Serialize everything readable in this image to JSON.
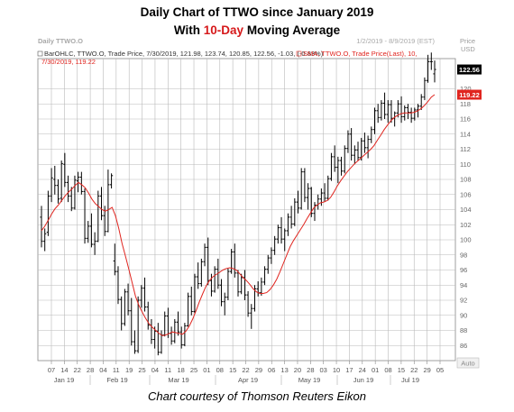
{
  "title": {
    "before": "Daily Chart of TTWO since January 2019",
    "line2_prefix": "With ",
    "line2_highlight": "10-Day",
    "line2_suffix": " Moving Average"
  },
  "caption": "Chart courtesy of Thomson Reuters Eikon",
  "header": {
    "symbol_label": "Daily TTWO.O",
    "date_range": "1/2/2019 - 8/9/2019 (EST)",
    "price_label": "Price",
    "currency_label": "USD",
    "auto_label": "Auto"
  },
  "legend": {
    "bar_info": "BarOHLC, TTWO.O, Trade Price, 7/30/2019, 121.98, 123.74, 120.85, 122.56, -1.03, (-0.83%)",
    "sma_info_line1": "SMA, TTWO.O, Trade Price(Last), 10,",
    "sma_info_line2": "7/30/2019, 119.22",
    "bar_color": "#000000",
    "sma_color": "#e0251f"
  },
  "chart_data": {
    "type": "line",
    "price_axis": {
      "min": 84,
      "max": 124,
      "ticks": [
        86,
        88,
        90,
        92,
        94,
        96,
        98,
        100,
        102,
        104,
        106,
        108,
        110,
        112,
        114,
        116,
        118,
        120
      ],
      "tick_labels": [
        "86",
        "88",
        "90",
        "92",
        "94",
        "96",
        "98",
        "100",
        "102",
        "104",
        "106",
        "108",
        "110",
        "112",
        "114",
        "116",
        "118",
        "120"
      ]
    },
    "last_price_marker": {
      "value": 122.56,
      "label": "122.56",
      "color": "#000000"
    },
    "sma_marker": {
      "value": 119.22,
      "label": "119.22",
      "color": "#e0251f"
    },
    "x_tick_labels": [
      "07",
      "14",
      "22",
      "28",
      "04",
      "11",
      "19",
      "25",
      "04",
      "11",
      "18",
      "25",
      "01",
      "08",
      "15",
      "22",
      "29",
      "06",
      "13",
      "20",
      "28",
      "03",
      "10",
      "17",
      "24",
      "01",
      "08",
      "15",
      "22",
      "29",
      "05"
    ],
    "month_labels": [
      "Jan 19",
      "Feb 19",
      "Mar 19",
      "Apr 19",
      "May 19",
      "Jun 19",
      "Jul 19"
    ],
    "ohlc_series": {
      "name": "BarOHLC",
      "color": "#000000",
      "values": [
        [
          103,
          104.5,
          99,
          99.8
        ],
        [
          99.8,
          101.5,
          98.5,
          100.8
        ],
        [
          101,
          106.5,
          100.5,
          105.8
        ],
        [
          105.8,
          109.5,
          105,
          108.2
        ],
        [
          108,
          109.8,
          106,
          107.2
        ],
        [
          107.2,
          108,
          104.8,
          105.4
        ],
        [
          105.5,
          110.5,
          105,
          110.1
        ],
        [
          110,
          111.5,
          107,
          107.6
        ],
        [
          107.6,
          108.5,
          105,
          105.8
        ],
        [
          105.8,
          107,
          103.8,
          104.2
        ],
        [
          104.2,
          108.5,
          104,
          107.9
        ],
        [
          107.8,
          109,
          106.3,
          108.3
        ],
        [
          108.3,
          109,
          106,
          106.4
        ],
        [
          106.4,
          106.8,
          99.5,
          100.2
        ],
        [
          100.2,
          102.5,
          99.6,
          101.8
        ],
        [
          101.8,
          103.5,
          99,
          99.4
        ],
        [
          99.4,
          101,
          98,
          99.8
        ],
        [
          99.8,
          106.5,
          99.7,
          105.8
        ],
        [
          105.8,
          107,
          102.6,
          103.2
        ],
        [
          103.2,
          104.5,
          100.5,
          101.1
        ],
        [
          101.1,
          109.3,
          101,
          107.3
        ],
        [
          107.3,
          108.8,
          106.8,
          108.5
        ],
        [
          97.2,
          99.5,
          95.3,
          95.8
        ],
        [
          95.8,
          96.5,
          91.5,
          92.1
        ],
        [
          92.1,
          92.5,
          88,
          88.9
        ],
        [
          88.9,
          93.5,
          88.6,
          93.1
        ],
        [
          93.1,
          94.2,
          90,
          90.6
        ],
        [
          90.6,
          92.3,
          86,
          86.5
        ],
        [
          86.5,
          88,
          84.9,
          85.3
        ],
        [
          85.3,
          92.5,
          85,
          92
        ],
        [
          92,
          94,
          91,
          93.6
        ],
        [
          93.6,
          95,
          90.5,
          91.1
        ],
        [
          91.1,
          91.8,
          88.1,
          88.7
        ],
        [
          88.7,
          89.5,
          86.2,
          86.8
        ],
        [
          86.8,
          88.5,
          85.6,
          87.9
        ],
        [
          87.9,
          89,
          84.7,
          85.1
        ],
        [
          85.1,
          88,
          84.9,
          87.4
        ],
        [
          87.4,
          90.5,
          87.2,
          89.9
        ],
        [
          89.9,
          91,
          87,
          87.6
        ],
        [
          87.6,
          88.5,
          86.1,
          86.6
        ],
        [
          86.6,
          89.5,
          86.3,
          89.1
        ],
        [
          89.1,
          90.5,
          87.3,
          87.8
        ],
        [
          87.8,
          88.5,
          85.6,
          86.1
        ],
        [
          86.1,
          89,
          85.9,
          88.6
        ],
        [
          88.6,
          93,
          88.5,
          92.5
        ],
        [
          92.5,
          93.8,
          90,
          90.5
        ],
        [
          90.5,
          95.5,
          90.3,
          95.1
        ],
        [
          95.1,
          97,
          93.5,
          94.2
        ],
        [
          94.2,
          97.5,
          93.8,
          97.1
        ],
        [
          97.1,
          99.5,
          96.5,
          99
        ],
        [
          99,
          100.3,
          94,
          94.6
        ],
        [
          94.6,
          95.5,
          92.5,
          93.2
        ],
        [
          93.2,
          96.5,
          93,
          96.1
        ],
        [
          96.1,
          97.5,
          93.5,
          94
        ],
        [
          94,
          94.8,
          91.2,
          91.8
        ],
        [
          91.8,
          93,
          90,
          92.4
        ],
        [
          92.4,
          96.2,
          92,
          95.8
        ],
        [
          95.8,
          98.8,
          95.5,
          98.4
        ],
        [
          98.4,
          99.5,
          95,
          95.6
        ],
        [
          95.6,
          96,
          92.5,
          93.1
        ],
        [
          93.1,
          95.5,
          92.8,
          95
        ],
        [
          95,
          96,
          92,
          92.7
        ],
        [
          92.7,
          93.2,
          89.8,
          90.3
        ],
        [
          90.3,
          91.5,
          88.2,
          90.9
        ],
        [
          90.9,
          94,
          90.5,
          93.5
        ],
        [
          93.5,
          94.5,
          92.5,
          93
        ],
        [
          93,
          95,
          92.6,
          94.4
        ],
        [
          94.4,
          96.5,
          94,
          96.1
        ],
        [
          96.1,
          98,
          95.5,
          97.6
        ],
        [
          97.6,
          99,
          96.8,
          98.6
        ],
        [
          98.6,
          100.5,
          98,
          100.1
        ],
        [
          100.1,
          102,
          99.5,
          101.6
        ],
        [
          101.6,
          103,
          99.5,
          100.1
        ],
        [
          100.1,
          101.5,
          98.5,
          101.2
        ],
        [
          101.2,
          103.5,
          100.5,
          103
        ],
        [
          103,
          104.5,
          101.5,
          102.1
        ],
        [
          102.1,
          105.5,
          101.8,
          105
        ],
        [
          105,
          106.5,
          103.5,
          104.2
        ],
        [
          104.2,
          109.5,
          104,
          109
        ],
        [
          109,
          109.5,
          105,
          105.6
        ],
        [
          105.6,
          107.5,
          104,
          106.8
        ],
        [
          106.8,
          107,
          103,
          103.5
        ],
        [
          103.5,
          105,
          102.5,
          104.6
        ],
        [
          104.6,
          106,
          104,
          105.4
        ],
        [
          105.4,
          106.8,
          104.5,
          106.2
        ],
        [
          106.2,
          107.5,
          105,
          105.5
        ],
        [
          105.5,
          108.5,
          105.2,
          108.1
        ],
        [
          108.1,
          111.5,
          107.8,
          111
        ],
        [
          111,
          112.5,
          109,
          109.6
        ],
        [
          109.6,
          111,
          107.5,
          110.5
        ],
        [
          110.5,
          111,
          108.5,
          109.1
        ],
        [
          109.1,
          112.5,
          108.8,
          112.1
        ],
        [
          112.1,
          114.5,
          111.5,
          114
        ],
        [
          114,
          114.8,
          110.5,
          111.2
        ],
        [
          111.2,
          112.5,
          110,
          111.9
        ],
        [
          111.9,
          113,
          110.5,
          110.9
        ],
        [
          110.9,
          113.5,
          110.5,
          113.1
        ],
        [
          113.1,
          114.2,
          111.5,
          112.2
        ],
        [
          112.2,
          113.8,
          110.8,
          113.3
        ],
        [
          113.3,
          115,
          112.8,
          114.6
        ],
        [
          114.6,
          117.5,
          114,
          117.1
        ],
        [
          117.1,
          118,
          115.5,
          116.2
        ],
        [
          116.2,
          118.5,
          115.8,
          118.1
        ],
        [
          118.1,
          119.5,
          116,
          116.6
        ],
        [
          116.6,
          118.5,
          115.5,
          117.9
        ],
        [
          117.9,
          118.5,
          115.5,
          116.1
        ],
        [
          116.1,
          117,
          115,
          116.8
        ],
        [
          116.8,
          118.5,
          116.2,
          118
        ],
        [
          118,
          119,
          115.5,
          116.3
        ],
        [
          116.3,
          117.8,
          115.8,
          117.5
        ],
        [
          117.5,
          118,
          116,
          116.9
        ],
        [
          116.9,
          117.5,
          115.5,
          116.1
        ],
        [
          116.1,
          117.5,
          115.8,
          117.2
        ],
        [
          117.2,
          118,
          116.2,
          117.7
        ],
        [
          117.7,
          119.3,
          117.2,
          118.9
        ],
        [
          118.9,
          121.5,
          118.5,
          121.1
        ],
        [
          121.1,
          124.5,
          120.8,
          123.6
        ],
        [
          123.6,
          124.8,
          122.5,
          123.6
        ],
        [
          121.98,
          123.74,
          120.85,
          122.56
        ]
      ]
    },
    "sma_series": {
      "name": "SMA",
      "color": "#e0251f",
      "values": [
        101.2,
        101.8,
        102.6,
        103.4,
        104.1,
        104.6,
        105.2,
        105.8,
        106.3,
        106.7,
        107.2,
        107.6,
        107.3,
        106.9,
        106.2,
        105.4,
        104.8,
        104.4,
        104,
        103.8,
        104,
        104.3,
        103.2,
        101.5,
        99.5,
        97.8,
        96.1,
        94.3,
        92.5,
        91.3,
        90.4,
        89.6,
        88.9,
        88.4,
        88,
        87.6,
        87.3,
        87.4,
        87.6,
        87.8,
        87.7,
        87.6,
        87.5,
        87.9,
        88.6,
        89.5,
        90.6,
        91.8,
        92.9,
        93.9,
        94.6,
        95.1,
        95.4,
        95.7,
        96,
        96.2,
        96.3,
        96.2,
        96,
        95.5,
        95,
        94.6,
        94.1,
        93.5,
        93.1,
        92.9,
        92.9,
        93,
        93.4,
        94,
        94.8,
        95.8,
        96.9,
        98,
        99.1,
        99.9,
        100.6,
        101.3,
        102,
        102.8,
        103.5,
        104.2,
        104.6,
        104.9,
        105,
        105.2,
        105.6,
        106.3,
        107.1,
        107.8,
        108.4,
        109,
        109.5,
        110,
        110.4,
        110.8,
        111.2,
        111.6,
        112,
        112.5,
        113.2,
        113.9,
        114.6,
        115.2,
        115.8,
        116.2,
        116.5,
        116.7,
        116.8,
        116.8,
        116.8,
        116.9,
        117.1,
        117.4,
        117.8,
        118.3,
        118.9,
        119.22
      ]
    }
  }
}
